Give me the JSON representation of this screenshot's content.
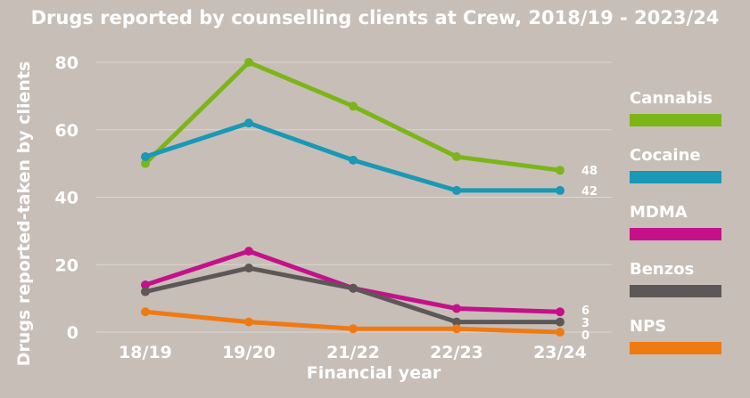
{
  "chart_data": {
    "type": "line",
    "title": "Drugs reported by counselling clients at Crew, 2018/19 - 2023/24",
    "xlabel": "Financial year",
    "ylabel": "Drugs reported-taken by clients",
    "categories": [
      "18/19",
      "19/20",
      "21/22",
      "22/23",
      "23/24"
    ],
    "ylim": [
      0,
      80
    ],
    "yticks": [
      "0",
      "20",
      "40",
      "60",
      "80"
    ],
    "grid": true,
    "legend_position": "right",
    "series": [
      {
        "name": "Cannabis",
        "color": "#7cb518",
        "values": [
          50,
          80,
          67,
          52,
          48
        ],
        "end_label": "48"
      },
      {
        "name": "Cocaine",
        "color": "#1a98b5",
        "values": [
          52,
          62,
          51,
          42,
          42
        ],
        "end_label": "42"
      },
      {
        "name": "MDMA",
        "color": "#c4118a",
        "values": [
          14,
          24,
          13,
          7,
          6
        ],
        "end_label": "6"
      },
      {
        "name": "Benzos",
        "color": "#5c5857",
        "values": [
          12,
          19,
          13,
          3,
          3
        ],
        "end_label": "3"
      },
      {
        "name": "NPS",
        "color": "#f07a12",
        "values": [
          6,
          3,
          1,
          1,
          0
        ],
        "end_label": "0"
      }
    ]
  }
}
